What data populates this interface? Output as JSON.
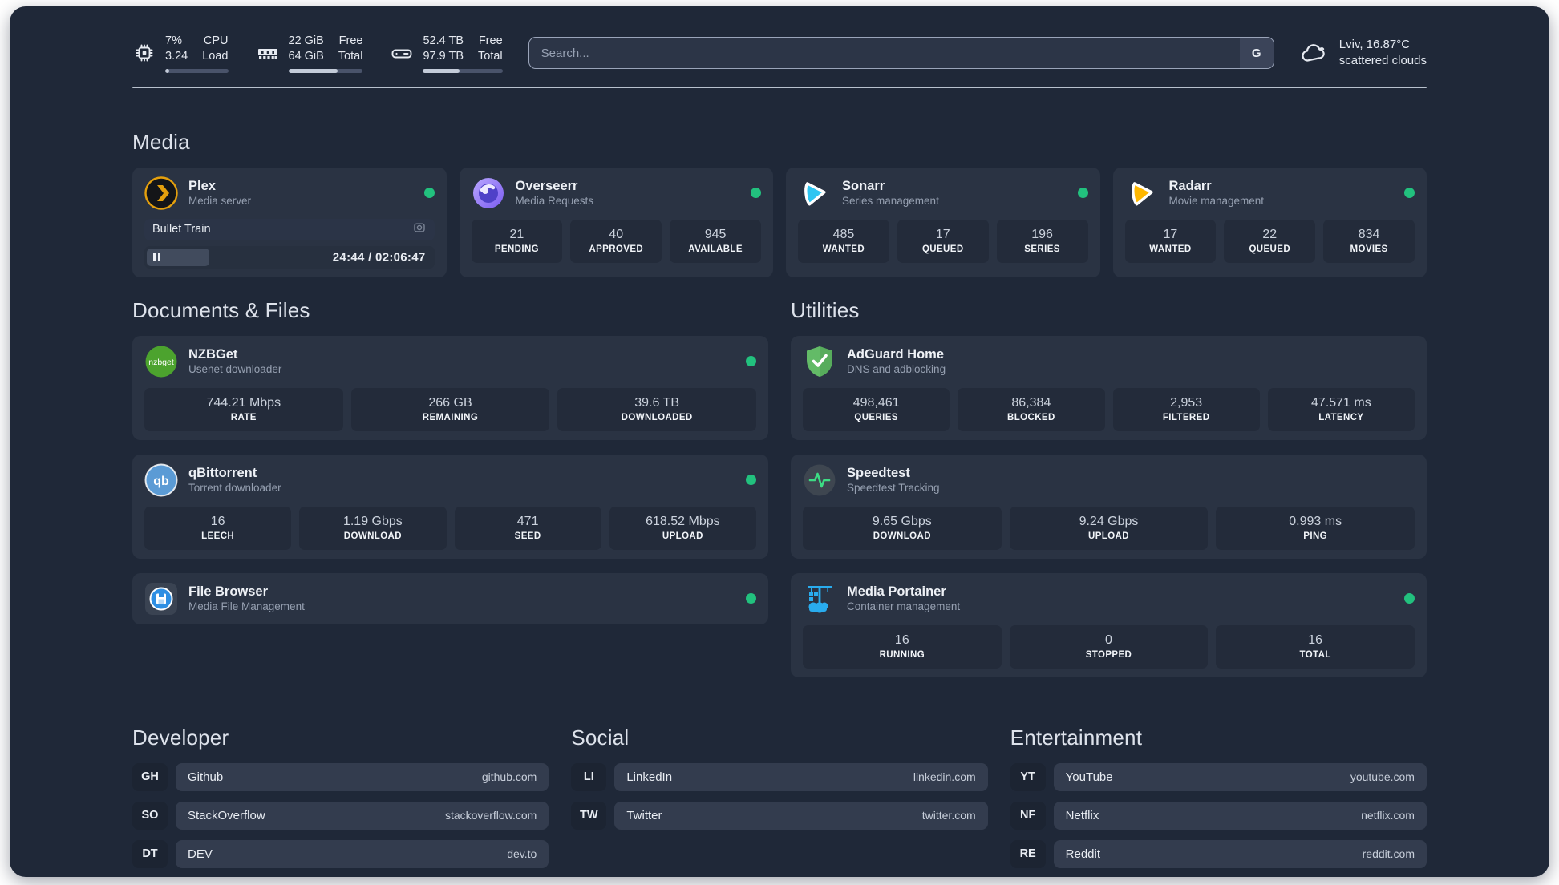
{
  "accent": {
    "status_green": "#22C17E"
  },
  "header": {
    "system_stats": [
      {
        "icon": "cpu-icon",
        "values": [
          "7%",
          "3.24"
        ],
        "labels": [
          "CPU",
          "Load"
        ],
        "progress_percent": 7
      },
      {
        "icon": "ram-icon",
        "values": [
          "22 GiB",
          "64 GiB"
        ],
        "labels": [
          "Free",
          "Total"
        ],
        "progress_percent": 66
      },
      {
        "icon": "disk-icon",
        "values": [
          "52.4 TB",
          "97.9 TB"
        ],
        "labels": [
          "Free",
          "Total"
        ],
        "progress_percent": 46
      }
    ],
    "search": {
      "placeholder": "Search...",
      "button_label": "G"
    },
    "weather": {
      "icon": "cloud-icon",
      "line1": "Lviv, 16.87°C",
      "line2": "scattered clouds"
    }
  },
  "media": {
    "title": "Media",
    "cards": [
      {
        "icon": "plex-icon",
        "name": "Plex",
        "subtitle": "Media server",
        "status_dot": true,
        "player": {
          "track": "Bullet Train",
          "type_icon": "camera-icon",
          "progress_percent": 19.5,
          "time": "24:44 / 02:06:47"
        }
      },
      {
        "icon": "overseerr-icon",
        "name": "Overseerr",
        "subtitle": "Media Requests",
        "status_dot": true,
        "stats": [
          {
            "value": "21",
            "label": "PENDING"
          },
          {
            "value": "40",
            "label": "APPROVED"
          },
          {
            "value": "945",
            "label": "AVAILABLE"
          }
        ]
      },
      {
        "icon": "sonarr-icon",
        "name": "Sonarr",
        "subtitle": "Series management",
        "status_dot": true,
        "stats": [
          {
            "value": "485",
            "label": "WANTED"
          },
          {
            "value": "17",
            "label": "QUEUED"
          },
          {
            "value": "196",
            "label": "SERIES"
          }
        ]
      },
      {
        "icon": "radarr-icon",
        "name": "Radarr",
        "subtitle": "Movie management",
        "status_dot": true,
        "stats": [
          {
            "value": "17",
            "label": "WANTED"
          },
          {
            "value": "22",
            "label": "QUEUED"
          },
          {
            "value": "834",
            "label": "MOVIES"
          }
        ]
      }
    ]
  },
  "documents": {
    "title": "Documents & Files",
    "cards": [
      {
        "icon": "nzbget-icon",
        "icon_label": "nzbget",
        "name": "NZBGet",
        "subtitle": "Usenet downloader",
        "status_dot": true,
        "stats": [
          {
            "value": "744.21 Mbps",
            "label": "RATE"
          },
          {
            "value": "266 GB",
            "label": "REMAINING"
          },
          {
            "value": "39.6 TB",
            "label": "DOWNLOADED"
          }
        ]
      },
      {
        "icon": "qbittorrent-icon",
        "icon_label": "qb",
        "name": "qBittorrent",
        "subtitle": "Torrent downloader",
        "status_dot": true,
        "stats": [
          {
            "value": "16",
            "label": "LEECH"
          },
          {
            "value": "1.19 Gbps",
            "label": "DOWNLOAD"
          },
          {
            "value": "471",
            "label": "SEED"
          },
          {
            "value": "618.52 Mbps",
            "label": "UPLOAD"
          }
        ]
      },
      {
        "icon": "filebrowser-icon",
        "name": "File Browser",
        "subtitle": "Media File Management",
        "status_dot": true
      }
    ]
  },
  "utilities": {
    "title": "Utilities",
    "cards": [
      {
        "icon": "adguard-icon",
        "name": "AdGuard Home",
        "subtitle": "DNS and adblocking",
        "status_dot": false,
        "stats": [
          {
            "value": "498,461",
            "label": "QUERIES"
          },
          {
            "value": "86,384",
            "label": "BLOCKED"
          },
          {
            "value": "2,953",
            "label": "FILTERED"
          },
          {
            "value": "47.571 ms",
            "label": "LATENCY"
          }
        ]
      },
      {
        "icon": "speedtest-icon",
        "name": "Speedtest",
        "subtitle": "Speedtest Tracking",
        "status_dot": false,
        "stats": [
          {
            "value": "9.65 Gbps",
            "label": "DOWNLOAD"
          },
          {
            "value": "9.24 Gbps",
            "label": "UPLOAD"
          },
          {
            "value": "0.993 ms",
            "label": "PING"
          }
        ]
      },
      {
        "icon": "portainer-icon",
        "name": "Media Portainer",
        "subtitle": "Container management",
        "status_dot": true,
        "stats": [
          {
            "value": "16",
            "label": "RUNNING"
          },
          {
            "value": "0",
            "label": "STOPPED"
          },
          {
            "value": "16",
            "label": "TOTAL"
          }
        ]
      }
    ]
  },
  "links": [
    {
      "title": "Developer",
      "items": [
        {
          "abbr": "GH",
          "name": "Github",
          "url": "github.com"
        },
        {
          "abbr": "SO",
          "name": "StackOverflow",
          "url": "stackoverflow.com"
        },
        {
          "abbr": "DT",
          "name": "DEV",
          "url": "dev.to"
        }
      ]
    },
    {
      "title": "Social",
      "items": [
        {
          "abbr": "LI",
          "name": "LinkedIn",
          "url": "linkedin.com"
        },
        {
          "abbr": "TW",
          "name": "Twitter",
          "url": "twitter.com"
        }
      ]
    },
    {
      "title": "Entertainment",
      "items": [
        {
          "abbr": "YT",
          "name": "YouTube",
          "url": "youtube.com"
        },
        {
          "abbr": "NF",
          "name": "Netflix",
          "url": "netflix.com"
        },
        {
          "abbr": "RE",
          "name": "Reddit",
          "url": "reddit.com"
        }
      ]
    }
  ]
}
